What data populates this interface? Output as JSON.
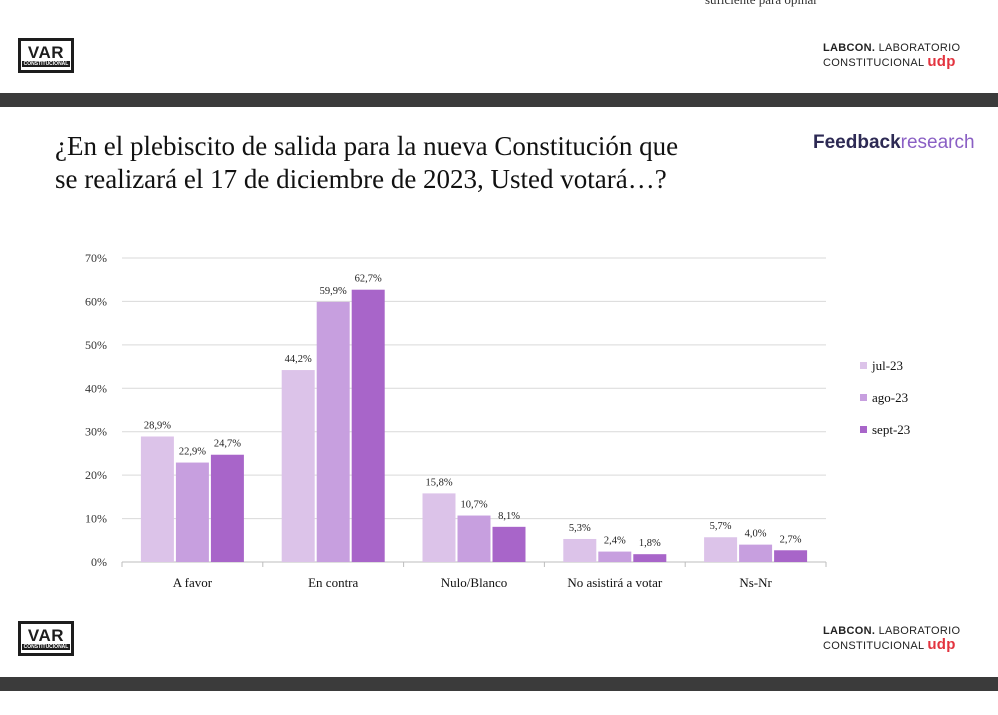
{
  "header": {
    "cut_text": "suficiente para opinar",
    "var_logo_main": "VAR",
    "var_logo_sub": "CONSTITUCIONAL",
    "labcon_line1_bold": "LABCON.",
    "labcon_line1_rest": " LABORATORIO",
    "labcon_line2": "CONSTITUCIONAL ",
    "labcon_udp": "udp"
  },
  "footer": {
    "var_logo_main": "VAR",
    "var_logo_sub": "CONSTITUCIONAL",
    "labcon_line1_bold": "LABCON.",
    "labcon_line1_rest": " LABORATORIO",
    "labcon_line2": "CONSTITUCIONAL ",
    "labcon_udp": "udp"
  },
  "brand": {
    "feedback_bold": "Feedback",
    "feedback_light": "research"
  },
  "chart_data": {
    "type": "bar",
    "title": "¿En el plebiscito de salida para la nueva Constitución que se realizará el 17 de diciembre de 2023, Usted votará…?",
    "categories": [
      "A favor",
      "En contra",
      "Nulo/Blanco",
      "No asistirá a votar",
      "Ns-Nr"
    ],
    "series": [
      {
        "name": "jul-23",
        "values": [
          28.9,
          44.2,
          15.8,
          5.3,
          5.7
        ],
        "labels": [
          "28,9%",
          "44,2%",
          "15,8%",
          "5,3%",
          "5,7%"
        ],
        "color": "#dcc3e9"
      },
      {
        "name": "ago-23",
        "values": [
          22.9,
          59.9,
          10.7,
          2.4,
          4.0
        ],
        "labels": [
          "22,9%",
          "59,9%",
          "10,7%",
          "2,4%",
          "4,0%"
        ],
        "color": "#c79fdf"
      },
      {
        "name": "sept-23",
        "values": [
          24.7,
          62.7,
          8.1,
          1.8,
          2.7
        ],
        "labels": [
          "24,7%",
          "62,7%",
          "8,1%",
          "1,8%",
          "2,7%"
        ],
        "color": "#a865c9"
      }
    ],
    "ylim": [
      0,
      70
    ],
    "yticks": [
      0,
      10,
      20,
      30,
      40,
      50,
      60,
      70
    ],
    "ytick_labels": [
      "0%",
      "10%",
      "20%",
      "30%",
      "40%",
      "50%",
      "60%",
      "70%"
    ],
    "grid": true,
    "legend_position": "right",
    "xlabel": "",
    "ylabel": ""
  }
}
